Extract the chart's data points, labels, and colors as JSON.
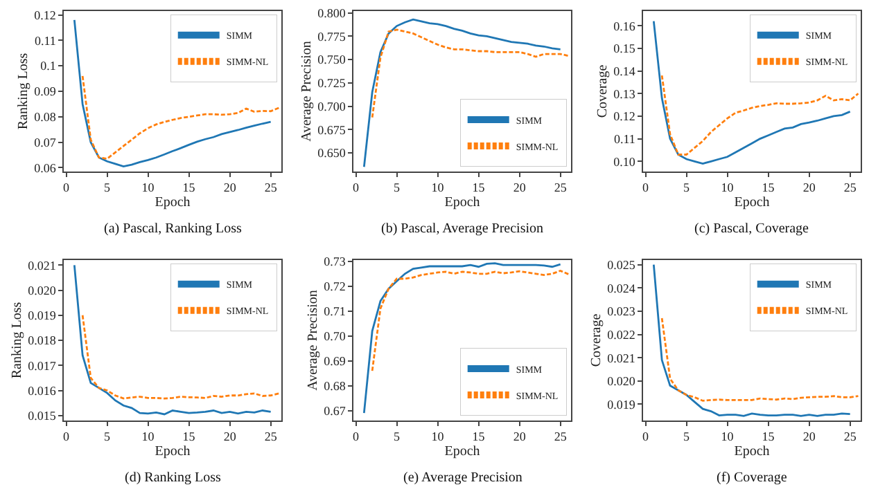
{
  "chart_data": [
    {
      "type": "line",
      "xlabel": "Epoch",
      "ylabel": "Ranking Loss",
      "annotations": [
        "(a) Pascal, Ranking Loss"
      ],
      "xlim": [
        -0.3,
        26.3
      ],
      "xticks": [
        0,
        5,
        10,
        15,
        20,
        25
      ],
      "ylim": [
        0.0585,
        0.1215
      ],
      "yticks": [
        0.06,
        0.07,
        0.08,
        0.09,
        0.1,
        0.11,
        0.12
      ],
      "grid": false,
      "legend": "top right",
      "marker": "none",
      "series": [
        {
          "name": "SIMM",
          "color": "#1f77b4",
          "line_style": "solid",
          "x": [
            1,
            2,
            3,
            4,
            5,
            6,
            7,
            8,
            9,
            10,
            11,
            12,
            13,
            14,
            15,
            16,
            17,
            18,
            19,
            20,
            21,
            22,
            23,
            24,
            25
          ],
          "values": [
            0.118,
            0.085,
            0.07,
            0.064,
            0.0625,
            0.0615,
            0.0605,
            0.0612,
            0.0622,
            0.063,
            0.064,
            0.0652,
            0.0665,
            0.0677,
            0.069,
            0.0702,
            0.0712,
            0.072,
            0.0732,
            0.074,
            0.0748,
            0.0757,
            0.0765,
            0.0773,
            0.078
          ]
        },
        {
          "name": "SIMM-NL",
          "color": "#ff7f0e",
          "line_style": "dashed",
          "x": [
            2,
            3,
            4,
            5,
            6,
            7,
            8,
            9,
            10,
            11,
            12,
            13,
            14,
            15,
            16,
            17,
            18,
            19,
            20,
            21,
            22,
            23,
            24,
            25,
            26
          ],
          "values": [
            0.096,
            0.071,
            0.064,
            0.0635,
            0.066,
            0.0685,
            0.071,
            0.0735,
            0.0755,
            0.077,
            0.078,
            0.0788,
            0.0795,
            0.08,
            0.0805,
            0.081,
            0.081,
            0.0808,
            0.081,
            0.0815,
            0.0832,
            0.082,
            0.0823,
            0.0822,
            0.0835
          ]
        }
      ]
    },
    {
      "type": "line",
      "xlabel": "Epoch",
      "ylabel": "Average Precision",
      "annotations": [
        "(b) Pascal, Average Precision"
      ],
      "xlim": [
        -0.3,
        26.3
      ],
      "xticks": [
        0,
        5,
        10,
        15,
        20,
        25
      ],
      "ylim": [
        0.63,
        0.802
      ],
      "yticks": [
        {
          "value": 0.65,
          "label": "0.650"
        },
        {
          "value": 0.675,
          "label": "0.675"
        },
        {
          "value": 0.7,
          "label": "0.700"
        },
        {
          "value": 0.725,
          "label": "0.725"
        },
        {
          "value": 0.75,
          "label": "0.750"
        },
        {
          "value": 0.775,
          "label": "0.775"
        },
        {
          "value": 0.8,
          "label": "0.800"
        }
      ],
      "grid": false,
      "legend": "bottom right",
      "marker": "none",
      "series": [
        {
          "name": "SIMM",
          "color": "#1f77b4",
          "line_style": "solid",
          "x": [
            1,
            2,
            3,
            4,
            5,
            6,
            7,
            8,
            9,
            10,
            11,
            12,
            13,
            14,
            15,
            16,
            17,
            18,
            19,
            20,
            21,
            22,
            23,
            24,
            25
          ],
          "values": [
            0.635,
            0.715,
            0.758,
            0.778,
            0.786,
            0.79,
            0.793,
            0.791,
            0.789,
            0.788,
            0.786,
            0.783,
            0.781,
            0.778,
            0.776,
            0.775,
            0.773,
            0.771,
            0.769,
            0.768,
            0.767,
            0.765,
            0.764,
            0.762,
            0.761
          ]
        },
        {
          "name": "SIMM-NL",
          "color": "#ff7f0e",
          "line_style": "dashed",
          "x": [
            2,
            3,
            4,
            5,
            6,
            7,
            8,
            9,
            10,
            11,
            12,
            13,
            14,
            15,
            16,
            17,
            18,
            19,
            20,
            21,
            22,
            23,
            24,
            25,
            26
          ],
          "values": [
            0.688,
            0.752,
            0.78,
            0.782,
            0.78,
            0.778,
            0.774,
            0.77,
            0.766,
            0.763,
            0.761,
            0.761,
            0.76,
            0.759,
            0.759,
            0.758,
            0.758,
            0.758,
            0.758,
            0.756,
            0.753,
            0.756,
            0.756,
            0.756,
            0.754
          ]
        }
      ]
    },
    {
      "type": "line",
      "xlabel": "Epoch",
      "ylabel": "Coverage",
      "annotations": [
        "(c) Pascal, Coverage"
      ],
      "xlim": [
        -0.3,
        26.3
      ],
      "xticks": [
        0,
        5,
        10,
        15,
        20,
        25
      ],
      "ylim": [
        0.0955,
        0.1665
      ],
      "yticks": [
        {
          "value": 0.1,
          "label": "0.10"
        },
        0.11,
        0.12,
        0.13,
        0.14,
        0.15,
        0.16
      ],
      "grid": false,
      "legend": "top right",
      "marker": "none",
      "series": [
        {
          "name": "SIMM",
          "color": "#1f77b4",
          "line_style": "solid",
          "x": [
            1,
            2,
            3,
            4,
            5,
            6,
            7,
            8,
            9,
            10,
            11,
            12,
            13,
            14,
            15,
            16,
            17,
            18,
            19,
            20,
            21,
            22,
            23,
            24,
            25
          ],
          "values": [
            0.162,
            0.128,
            0.11,
            0.103,
            0.101,
            0.1,
            0.099,
            0.1,
            0.101,
            0.102,
            0.104,
            0.106,
            0.108,
            0.11,
            0.1115,
            0.113,
            0.1145,
            0.115,
            0.1165,
            0.1172,
            0.118,
            0.119,
            0.12,
            0.1205,
            0.122
          ]
        },
        {
          "name": "SIMM-NL",
          "color": "#ff7f0e",
          "line_style": "dashed",
          "x": [
            2,
            3,
            4,
            5,
            6,
            7,
            8,
            9,
            10,
            11,
            12,
            13,
            14,
            15,
            16,
            17,
            18,
            19,
            20,
            21,
            22,
            23,
            24,
            25,
            26
          ],
          "values": [
            0.138,
            0.112,
            0.103,
            0.103,
            0.106,
            0.109,
            0.113,
            0.116,
            0.119,
            0.1215,
            0.1225,
            0.1237,
            0.1245,
            0.125,
            0.1257,
            0.1255,
            0.1255,
            0.1257,
            0.126,
            0.127,
            0.129,
            0.127,
            0.1275,
            0.127,
            0.13
          ]
        }
      ]
    },
    {
      "type": "line",
      "xlabel": "Epoch",
      "ylabel": "Ranking Loss",
      "annotations": [
        "(d) Ranking Loss"
      ],
      "xlim": [
        -0.3,
        26.3
      ],
      "xticks": [
        0,
        5,
        10,
        15,
        20,
        25
      ],
      "ylim": [
        0.0148,
        0.0212
      ],
      "yticks": [
        {
          "value": 0.015,
          "label": "0.015"
        },
        0.016,
        0.017,
        0.018,
        0.019,
        {
          "value": 0.02,
          "label": "0.020"
        },
        0.021
      ],
      "grid": false,
      "legend": "top right",
      "marker": "none",
      "series": [
        {
          "name": "SIMM",
          "color": "#1f77b4",
          "line_style": "solid",
          "x": [
            1,
            2,
            3,
            4,
            5,
            6,
            7,
            8,
            9,
            10,
            11,
            12,
            13,
            14,
            15,
            16,
            17,
            18,
            19,
            20,
            21,
            22,
            23,
            24,
            25
          ],
          "values": [
            0.021,
            0.0174,
            0.0163,
            0.0161,
            0.0159,
            0.0156,
            0.0154,
            0.0153,
            0.0151,
            0.01508,
            0.01512,
            0.01505,
            0.0152,
            0.01515,
            0.0151,
            0.01512,
            0.01515,
            0.0152,
            0.0151,
            0.01515,
            0.01508,
            0.01515,
            0.01512,
            0.0152,
            0.01515
          ]
        },
        {
          "name": "SIMM-NL",
          "color": "#ff7f0e",
          "line_style": "dashed",
          "x": [
            2,
            3,
            4,
            5,
            6,
            7,
            8,
            9,
            10,
            11,
            12,
            13,
            14,
            15,
            16,
            17,
            18,
            19,
            20,
            21,
            22,
            23,
            24,
            25,
            26
          ],
          "values": [
            0.019,
            0.0165,
            0.0161,
            0.016,
            0.0158,
            0.01568,
            0.01572,
            0.01575,
            0.0157,
            0.0157,
            0.01568,
            0.0157,
            0.01575,
            0.01573,
            0.01572,
            0.0157,
            0.01578,
            0.01575,
            0.0158,
            0.0158,
            0.01585,
            0.01588,
            0.01578,
            0.0158,
            0.01588
          ]
        }
      ]
    },
    {
      "type": "line",
      "xlabel": "Epoch",
      "ylabel": "Average Precision",
      "annotations": [
        "(e) Average Precision"
      ],
      "xlim": [
        -0.3,
        26.3
      ],
      "xticks": [
        0,
        5,
        10,
        15,
        20,
        25
      ],
      "ylim": [
        0.666,
        0.7305
      ],
      "yticks": [
        0.67,
        0.68,
        0.69,
        {
          "value": 0.7,
          "label": "0.70"
        },
        0.71,
        0.72,
        0.73
      ],
      "grid": false,
      "legend": "bottom right",
      "marker": "none",
      "series": [
        {
          "name": "SIMM",
          "color": "#1f77b4",
          "line_style": "solid",
          "x": [
            1,
            2,
            3,
            4,
            5,
            6,
            7,
            8,
            9,
            10,
            11,
            12,
            13,
            14,
            15,
            16,
            17,
            18,
            19,
            20,
            21,
            22,
            23,
            24,
            25
          ],
          "values": [
            0.669,
            0.702,
            0.714,
            0.719,
            0.722,
            0.725,
            0.727,
            0.7275,
            0.728,
            0.728,
            0.728,
            0.728,
            0.728,
            0.7285,
            0.7278,
            0.729,
            0.7292,
            0.7285,
            0.7285,
            0.7285,
            0.7285,
            0.7285,
            0.7283,
            0.7278,
            0.7288
          ]
        },
        {
          "name": "SIMM-NL",
          "color": "#ff7f0e",
          "line_style": "dashed",
          "x": [
            2,
            3,
            4,
            5,
            6,
            7,
            8,
            9,
            10,
            11,
            12,
            13,
            14,
            15,
            16,
            17,
            18,
            19,
            20,
            21,
            22,
            23,
            24,
            25,
            26
          ],
          "values": [
            0.686,
            0.711,
            0.719,
            0.723,
            0.723,
            0.7235,
            0.7245,
            0.725,
            0.7255,
            0.7258,
            0.725,
            0.7258,
            0.7255,
            0.725,
            0.725,
            0.7258,
            0.7252,
            0.7255,
            0.726,
            0.7255,
            0.725,
            0.7245,
            0.725,
            0.7262,
            0.7248
          ]
        }
      ]
    },
    {
      "type": "line",
      "xlabel": "Epoch",
      "ylabel": "Coverage",
      "annotations": [
        "(f) Coverage"
      ],
      "xlim": [
        -0.3,
        26.3
      ],
      "xticks": [
        0,
        5,
        10,
        15,
        20,
        25
      ],
      "ylim": [
        0.0183,
        0.0252
      ],
      "yticks": [
        0.019,
        {
          "value": 0.02,
          "label": "0.020"
        },
        0.021,
        0.022,
        0.023,
        0.024,
        0.025
      ],
      "grid": false,
      "legend": "top right",
      "marker": "none",
      "series": [
        {
          "name": "SIMM",
          "color": "#1f77b4",
          "line_style": "solid",
          "x": [
            1,
            2,
            3,
            4,
            5,
            6,
            7,
            8,
            9,
            10,
            11,
            12,
            13,
            14,
            15,
            16,
            17,
            18,
            19,
            20,
            21,
            22,
            23,
            24,
            25
          ],
          "values": [
            0.025,
            0.0209,
            0.0198,
            0.0196,
            0.0194,
            0.0191,
            0.0188,
            0.0187,
            0.01852,
            0.01855,
            0.01855,
            0.0185,
            0.0186,
            0.01855,
            0.01852,
            0.01852,
            0.01855,
            0.01855,
            0.0185,
            0.01855,
            0.0185,
            0.01855,
            0.01855,
            0.0186,
            0.01858
          ]
        },
        {
          "name": "SIMM-NL",
          "color": "#ff7f0e",
          "line_style": "dashed",
          "x": [
            2,
            3,
            4,
            5,
            6,
            7,
            8,
            9,
            10,
            11,
            12,
            13,
            14,
            15,
            16,
            17,
            18,
            19,
            20,
            21,
            22,
            23,
            24,
            25,
            26
          ],
          "values": [
            0.0227,
            0.0201,
            0.0196,
            0.0194,
            0.0193,
            0.01915,
            0.01918,
            0.0192,
            0.01918,
            0.01918,
            0.01918,
            0.01918,
            0.01925,
            0.01922,
            0.0192,
            0.01925,
            0.01922,
            0.01928,
            0.0193,
            0.01932,
            0.01932,
            0.01935,
            0.0193,
            0.0193,
            0.01935
          ]
        }
      ]
    }
  ]
}
